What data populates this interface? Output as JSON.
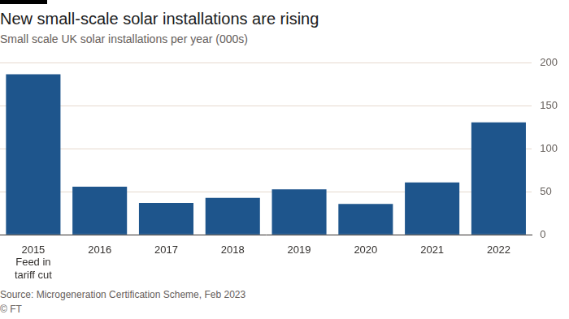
{
  "chart_data": {
    "type": "bar",
    "title": "New small-scale solar installations are rising",
    "subtitle": "Small scale UK solar installations per year (000s)",
    "categories": [
      "2015\nFeed in\ntariff cut",
      "2016",
      "2017",
      "2018",
      "2019",
      "2020",
      "2021",
      "2022"
    ],
    "values": [
      187,
      56,
      37,
      43,
      53,
      36,
      61,
      131
    ],
    "color": "#1e558c",
    "ylim": [
      0,
      200
    ],
    "yticks": [
      0,
      50,
      100,
      150,
      200
    ],
    "grid": true,
    "source": "Source: Microgeneration Certification Scheme, Feb 2023",
    "credit": "© FT"
  }
}
